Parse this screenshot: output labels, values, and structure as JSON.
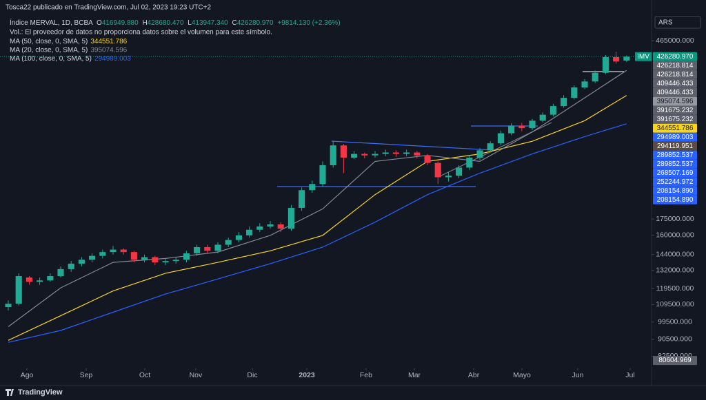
{
  "header": {
    "published": "Tosca22 publicado en TradingView.com, Jul 02, 2023 19:23 UTC+2",
    "symbol": "Índice MERVAL, 1D, BCBA",
    "ohlc": [
      {
        "letter": "O",
        "value": {
          "value": 416949.88,
          "label": "416949.880"
        }
      },
      {
        "letter": "H",
        "value": {
          "value": 428680.47,
          "label": "428680.470"
        }
      },
      {
        "letter": "L",
        "value": {
          "value": 413947.34,
          "label": "413947.340"
        }
      },
      {
        "letter": "C",
        "value": {
          "value": 426280.97,
          "label": "426280.970"
        }
      }
    ],
    "change": "+9814.130 (+2.36%)",
    "volume_note": "Vol.: El proveedor de datos no proporciona datos sobre el volumen para este símbolo.",
    "currency": "ARS",
    "footer": "TradingView"
  },
  "chart_data": {
    "type": "candlestick",
    "log_scale": true,
    "grid": false,
    "up_color": "#22ab94",
    "down_color": "#f23645",
    "xlim": [
      -0.79,
      61.38
    ],
    "ylim": [
      77200,
      535000
    ],
    "xticks": [
      {
        "value": 1.78,
        "label": "Ago"
      },
      {
        "value": 7.43,
        "label": "Sep"
      },
      {
        "value": 13.03,
        "label": "Oct"
      },
      {
        "value": 17.89,
        "label": "Nov"
      },
      {
        "value": 23.29,
        "label": "Dic"
      },
      {
        "value": 28.49,
        "label": "2023"
      },
      {
        "value": 34.14,
        "label": "Feb"
      },
      {
        "value": 38.75,
        "label": "Mar"
      },
      {
        "value": 44.41,
        "label": "Abr"
      },
      {
        "value": 49.01,
        "label": "Mayo"
      },
      {
        "value": 54.34,
        "label": "Jun"
      },
      {
        "value": 59.34,
        "label": "Jul"
      }
    ],
    "yticks": [
      {
        "value": 465000,
        "label": "465000.000"
      },
      {
        "value": 175000,
        "label": "175000.000"
      },
      {
        "value": 160000,
        "label": "160000.000"
      },
      {
        "value": 144000,
        "label": "144000.000"
      },
      {
        "value": 132000,
        "label": "132000.000"
      },
      {
        "value": 119500,
        "label": "119500.000"
      },
      {
        "value": 109500,
        "label": "109500.000"
      },
      {
        "value": 99500,
        "label": "99500.000"
      },
      {
        "value": 90500,
        "label": "90500.000"
      },
      {
        "value": 82500,
        "label": "82500.000"
      }
    ],
    "open": [
      108000,
      110000,
      127000,
      124000,
      125000,
      128000,
      133000,
      137000,
      140000,
      143000,
      146000,
      148000,
      146000,
      140000,
      142000,
      138000,
      139000,
      140000,
      145000,
      150000,
      147000,
      152000,
      156000,
      160000,
      165000,
      168000,
      170000,
      166000,
      186000,
      205000,
      212000,
      235000,
      262000,
      245000,
      250000,
      248000,
      250000,
      252000,
      250000,
      252000,
      248000,
      238000,
      220000,
      222000,
      232000,
      245000,
      255000,
      265000,
      280000,
      292000,
      288000,
      300000,
      310000,
      325000,
      340000,
      360000,
      372000,
      390000,
      425000,
      416949.88
    ],
    "high": [
      112000,
      130000,
      128000,
      127000,
      130000,
      135000,
      139000,
      142000,
      145000,
      148000,
      151000,
      149000,
      147000,
      144000,
      143000,
      141000,
      142000,
      147000,
      152000,
      152000,
      154000,
      158000,
      163000,
      168000,
      171000,
      173000,
      172000,
      189000,
      208000,
      216000,
      240000,
      268000,
      264000,
      254000,
      252000,
      254000,
      256000,
      255000,
      256000,
      254000,
      250000,
      240000,
      226000,
      235000,
      248000,
      258000,
      268000,
      284000,
      296000,
      296000,
      303000,
      314000,
      329000,
      345000,
      364000,
      377000,
      395000,
      430000,
      438000,
      428680.47
    ],
    "low": [
      106000,
      109000,
      122000,
      122000,
      124000,
      127000,
      131000,
      135000,
      138000,
      141000,
      144000,
      144000,
      138000,
      138000,
      136000,
      136000,
      137000,
      138000,
      143000,
      145000,
      145000,
      150000,
      154000,
      158000,
      163000,
      166000,
      163000,
      164000,
      183000,
      202000,
      209000,
      232000,
      225000,
      243000,
      244000,
      245000,
      247000,
      246000,
      247000,
      244000,
      235000,
      212000,
      215000,
      219000,
      229000,
      242000,
      252000,
      262000,
      277000,
      283000,
      285000,
      297000,
      307000,
      322000,
      337000,
      357000,
      369000,
      387000,
      410000,
      413947.34
    ],
    "close": [
      110000,
      128000,
      124000,
      125000,
      128000,
      133000,
      137000,
      140000,
      143000,
      146000,
      148000,
      146000,
      140000,
      142000,
      138000,
      139000,
      140000,
      145000,
      150000,
      147000,
      152000,
      156000,
      160000,
      165000,
      168000,
      170000,
      166000,
      186000,
      205000,
      212000,
      235000,
      262000,
      245000,
      250000,
      248000,
      250000,
      252000,
      250000,
      252000,
      248000,
      238000,
      220000,
      222000,
      232000,
      245000,
      255000,
      265000,
      280000,
      292000,
      288000,
      300000,
      310000,
      325000,
      340000,
      360000,
      372000,
      390000,
      425000,
      415000,
      426280.97
    ],
    "series": [
      {
        "name": "MA (50, close, 0, SMA, 5)",
        "value_label": "344551.786",
        "color": "#f7d51d",
        "x": [
          0,
          5,
          10,
          15,
          20,
          25,
          30,
          35,
          40,
          45,
          50,
          55,
          59
        ],
        "values": [
          90000,
          103000,
          118000,
          130000,
          138000,
          147000,
          160000,
          200000,
          240000,
          250000,
          268000,
          300000,
          344551.786
        ]
      },
      {
        "name": "MA (20, close, 0, SMA, 5)",
        "value_label": "395074.596",
        "color": "#868993",
        "x": [
          0,
          5,
          10,
          15,
          20,
          25,
          30,
          35,
          40,
          45,
          50,
          55,
          59
        ],
        "values": [
          97000,
          120000,
          138000,
          141000,
          146000,
          160000,
          185000,
          240000,
          248000,
          240000,
          282000,
          340000,
          395074.596
        ]
      },
      {
        "name": "MA (100, close, 0, SMA, 5)",
        "value_label": "294989.003",
        "color": "#2962ff",
        "x": [
          0,
          5,
          10,
          15,
          20,
          25,
          30,
          35,
          40,
          45,
          50,
          55,
          59
        ],
        "values": [
          89000,
          95000,
          105000,
          116000,
          126000,
          137000,
          150000,
          172000,
          200000,
          225000,
          250000,
          275000,
          294989.003
        ]
      }
    ],
    "last_tag": "IMV",
    "price_labels": [
      {
        "value": 426280.97,
        "label": "426280.970",
        "color": "#089981",
        "text_color": "#ffffff"
      },
      {
        "value": 426218.814,
        "label": "426218.814",
        "color": "#5d606b",
        "text_color": "#ffffff"
      },
      {
        "value": 426218.814,
        "label": "426218.814",
        "color": "#5d606b",
        "text_color": "#ffffff"
      },
      {
        "value": 409446.433,
        "label": "409446.433",
        "color": "#5d606b",
        "text_color": "#ffffff"
      },
      {
        "value": 409446.433,
        "label": "409446.433",
        "color": "#5d606b",
        "text_color": "#ffffff"
      },
      {
        "value": 395074.596,
        "label": "395074.596",
        "color": "#9598a1",
        "text_color": "#131722"
      },
      {
        "value": 391675.232,
        "label": "391675.232",
        "color": "#5d606b",
        "text_color": "#ffffff"
      },
      {
        "value": 391675.232,
        "label": "391675.232",
        "color": "#5d606b",
        "text_color": "#ffffff"
      },
      {
        "value": 344551.786,
        "label": "344551.786",
        "color": "#f7d51d",
        "text_color": "#131722"
      },
      {
        "value": 294989.003,
        "label": "294989.003",
        "color": "#2962ff",
        "text_color": "#ffffff"
      },
      {
        "value": 294119.951,
        "label": "294119.951",
        "color": "#5a4c44",
        "text_color": "#ffffff"
      },
      {
        "value": 289852.537,
        "label": "289852.537",
        "color": "#2962ff",
        "text_color": "#ffffff"
      },
      {
        "value": 289852.537,
        "label": "289852.537",
        "color": "#2962ff",
        "text_color": "#ffffff"
      },
      {
        "value": 268507.169,
        "label": "268507.169",
        "color": "#2962ff",
        "text_color": "#ffffff"
      },
      {
        "value": 252244.972,
        "label": "252244.972",
        "color": "#2962ff",
        "text_color": "#ffffff"
      },
      {
        "value": 208154.89,
        "label": "208154.890",
        "color": "#2962ff",
        "text_color": "#ffffff"
      },
      {
        "value": 208154.89,
        "label": "208154.890",
        "color": "#2962ff",
        "text_color": "#ffffff"
      }
    ],
    "scale_low": {
      "value": 80604.969,
      "label": "80604.969",
      "color": "#5d606b",
      "text_color": "#ffffff"
    }
  }
}
